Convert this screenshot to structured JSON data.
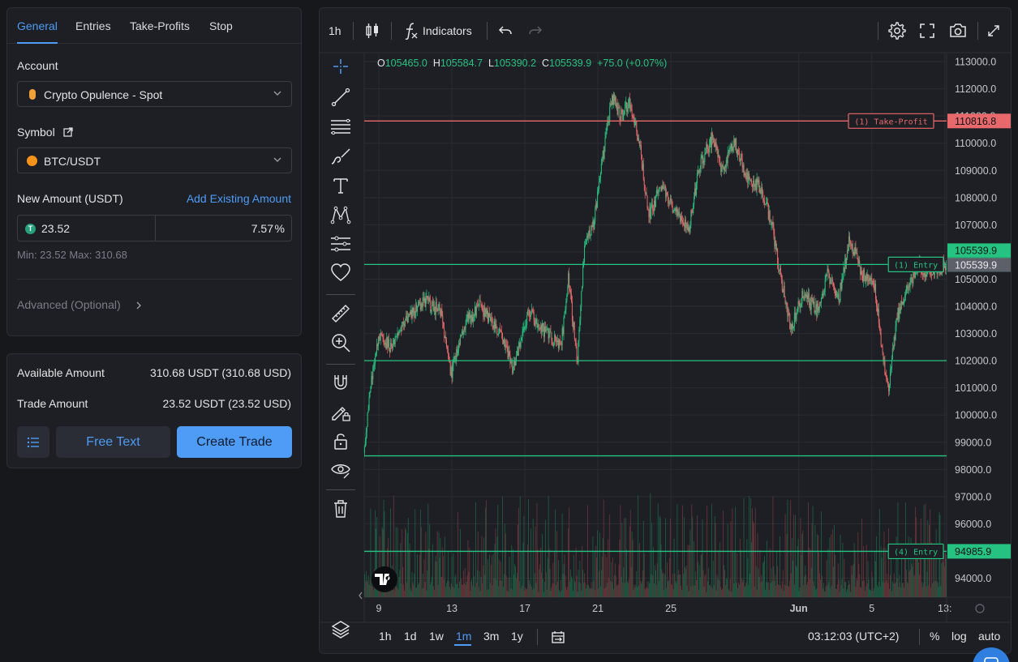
{
  "panel": {
    "tabs": [
      {
        "label": "General"
      },
      {
        "label": "Entries"
      },
      {
        "label": "Take-Profits"
      },
      {
        "label": "Stop"
      }
    ],
    "account_label": "Account",
    "account_value": "Crypto Opulence - Spot",
    "symbol_label": "Symbol",
    "symbol_value": "BTC/USDT",
    "new_amount_label": "New Amount (USDT)",
    "add_existing_label": "Add Existing Amount",
    "amount_value": "23.52",
    "percent_value": "7.57",
    "percent_suffix": "%",
    "min_max": "Min: 23.52 Max: 310.68",
    "advanced_label": "Advanced (Optional)",
    "available_label": "Available Amount",
    "available_value": "310.68 USDT (310.68 USD)",
    "trade_label": "Trade Amount",
    "trade_value": "23.52 USDT (23.52 USD)",
    "free_text_label": "Free Text",
    "create_trade_label": "Create Trade",
    "colors": {
      "accent": "#4e9cf6",
      "btc": "#f7931a",
      "tether": "#26a17b"
    }
  },
  "toolbar": {
    "interval": "1h",
    "indicators_label": "Indicators"
  },
  "ohlc": {
    "o_label": "O",
    "o_value": "105465.0",
    "h_label": "H",
    "h_value": "105584.7",
    "l_label": "L",
    "l_value": "105390.2",
    "c_label": "C",
    "c_value": "105539.9",
    "change": "+75.0 (+0.07%)"
  },
  "bottom": {
    "ranges": [
      "1h",
      "1d",
      "1w",
      "1m",
      "3m",
      "1y"
    ],
    "active_range": "1m",
    "time": "03:12:03 (UTC+2)",
    "percent": "%",
    "log": "log",
    "auto": "auto"
  },
  "chart_data": {
    "type": "candlestick",
    "symbol": "BTC/USDT",
    "interval": "1h",
    "y_ticks": [
      113000,
      112000,
      111000,
      110000,
      109000,
      108000,
      107000,
      106000,
      105000,
      104000,
      103000,
      102000,
      101000,
      100000,
      99000,
      98000,
      97000,
      96000,
      95000,
      94000
    ],
    "y_tick_labels": [
      "113000.0",
      "112000.0",
      "111000.0",
      "110000.0",
      "109000.0",
      "108000.0",
      "107000.0",
      "106000.0",
      "105000.0",
      "104000.0",
      "103000.0",
      "102000.0",
      "101000.0",
      "100000.0",
      "99000.0",
      "98000.0",
      "97000.0",
      "96000.0",
      "95000.0",
      "94000.0"
    ],
    "ylim": [
      93300,
      113300
    ],
    "x_labels": [
      "9",
      "13",
      "17",
      "21",
      "25",
      "Jun",
      "5",
      "13:"
    ],
    "x_label_days": [
      9,
      13,
      17,
      21,
      25,
      32,
      36,
      40
    ],
    "xlim_days": [
      8.2,
      40.1
    ],
    "price_path": [
      [
        8.2,
        98600
      ],
      [
        8.6,
        101200
      ],
      [
        9.0,
        103000
      ],
      [
        9.6,
        102500
      ],
      [
        10.5,
        103500
      ],
      [
        11.5,
        104200
      ],
      [
        12.4,
        103800
      ],
      [
        13.0,
        101500
      ],
      [
        13.6,
        103200
      ],
      [
        14.5,
        104000
      ],
      [
        15.5,
        103200
      ],
      [
        16.4,
        101700
      ],
      [
        17.2,
        103800
      ],
      [
        18.2,
        103000
      ],
      [
        19.0,
        102500
      ],
      [
        19.4,
        105000
      ],
      [
        19.9,
        102000
      ],
      [
        20.3,
        106200
      ],
      [
        20.8,
        107000
      ],
      [
        21.3,
        109500
      ],
      [
        21.8,
        111700
      ],
      [
        22.3,
        111000
      ],
      [
        22.8,
        111500
      ],
      [
        23.3,
        110000
      ],
      [
        23.8,
        107300
      ],
      [
        24.5,
        108500
      ],
      [
        25.2,
        107500
      ],
      [
        26.0,
        106800
      ],
      [
        26.6,
        109200
      ],
      [
        27.3,
        110200
      ],
      [
        27.8,
        109000
      ],
      [
        28.5,
        110100
      ],
      [
        29.2,
        108700
      ],
      [
        30.0,
        108300
      ],
      [
        30.6,
        106800
      ],
      [
        31.0,
        105200
      ],
      [
        31.6,
        103200
      ],
      [
        32.3,
        104500
      ],
      [
        33.0,
        103800
      ],
      [
        33.6,
        105200
      ],
      [
        34.2,
        104200
      ],
      [
        34.8,
        106500
      ],
      [
        35.5,
        105200
      ],
      [
        36.2,
        104600
      ],
      [
        36.9,
        100800
      ],
      [
        37.4,
        103600
      ],
      [
        38.0,
        104800
      ],
      [
        38.6,
        105500
      ],
      [
        39.2,
        105200
      ],
      [
        40.1,
        105540
      ]
    ],
    "price_lines": [
      {
        "price": 110816.8,
        "label": "(1) Take-Profit",
        "value_label": "110816.8",
        "color": "#e8696b"
      },
      {
        "price": 105539.9,
        "label": "(1) Entry",
        "value_label": "105539.9",
        "color": "#26c281"
      },
      {
        "price": 102000,
        "label": "",
        "value_label": "",
        "color": "#26c281"
      },
      {
        "price": 98500,
        "label": "",
        "value_label": "",
        "color": "#26c281"
      },
      {
        "price": 94985.9,
        "label": "(4) Entry",
        "value_label": "94985.9",
        "color": "#26c281"
      }
    ],
    "last_price_label": "105539.9",
    "last_price_gray_label": "105539.9",
    "up_color": "#26c281",
    "down_color": "#e8696b",
    "grid": true
  }
}
